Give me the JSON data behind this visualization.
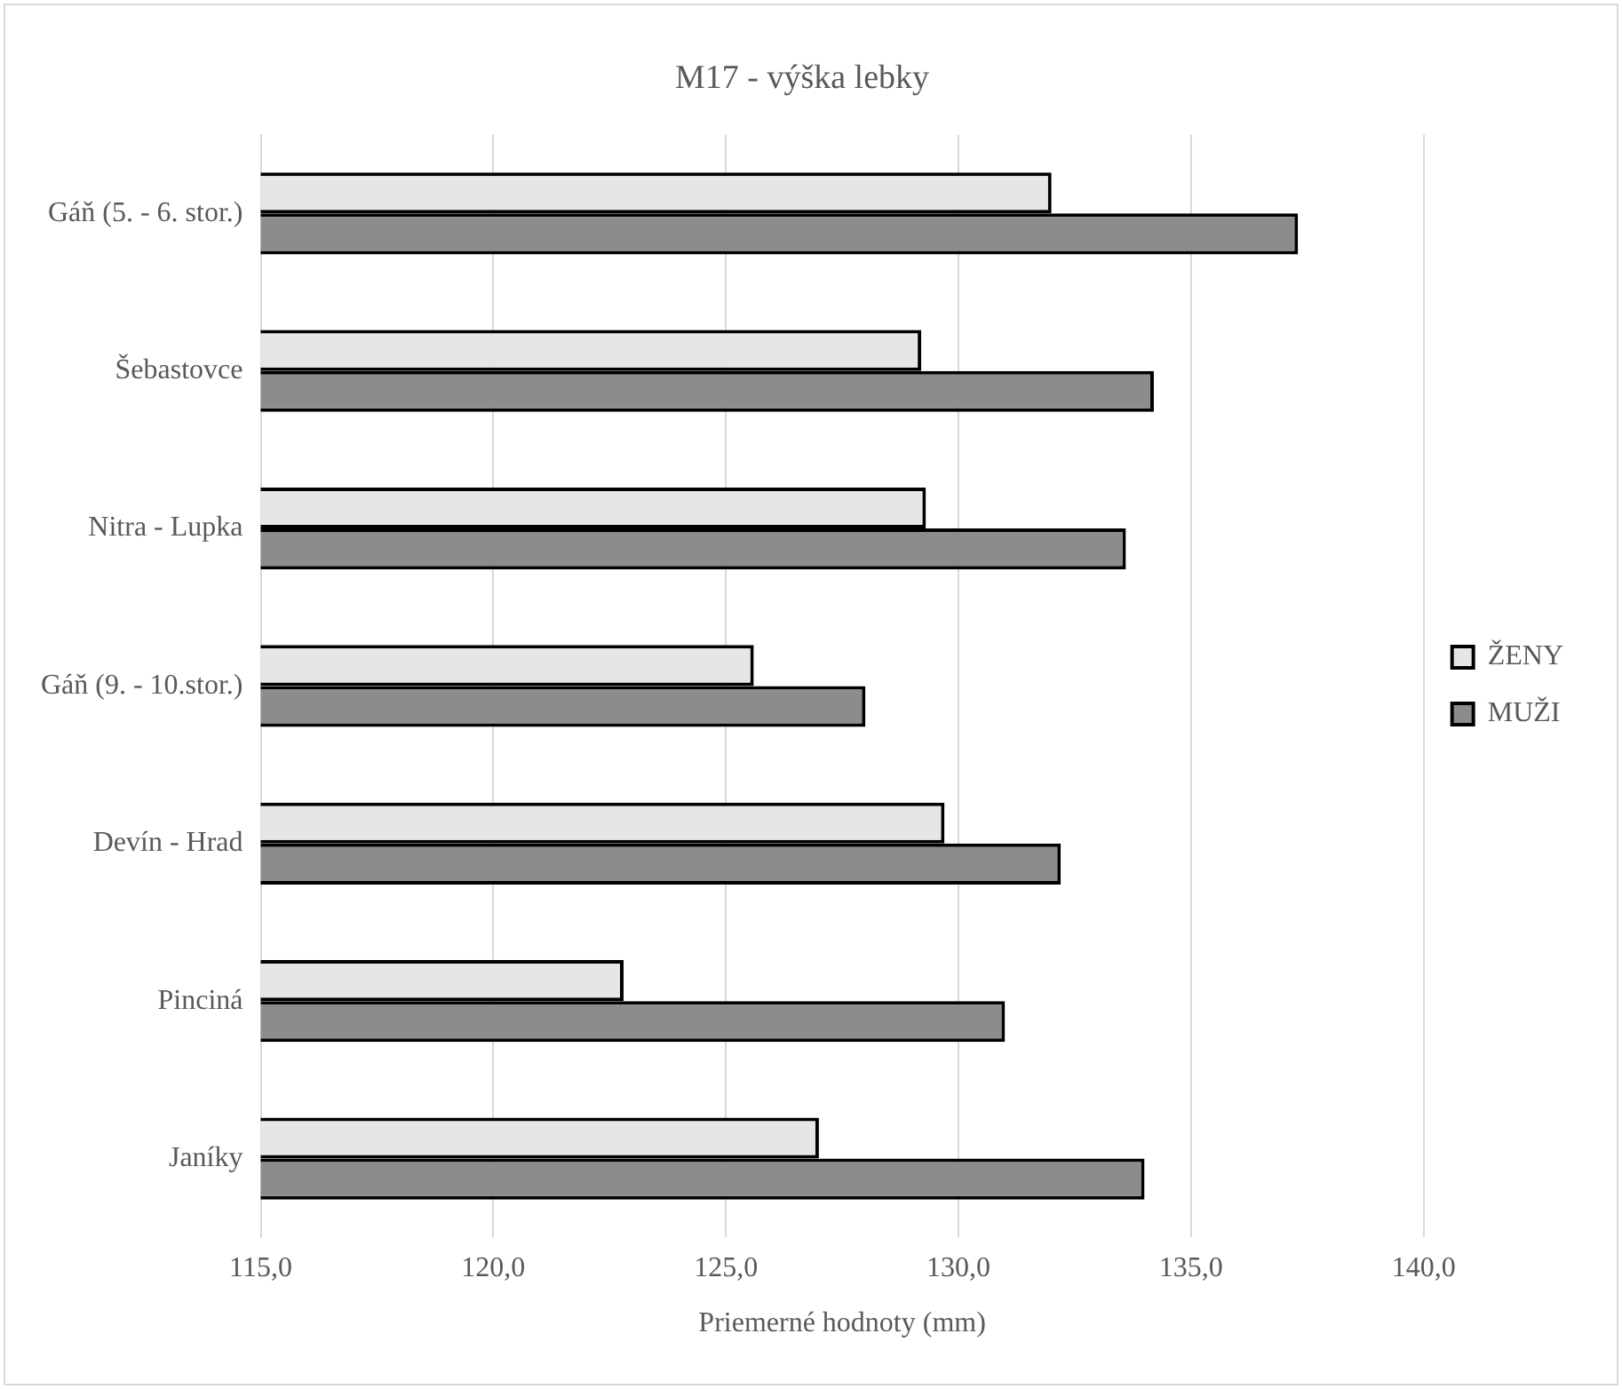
{
  "chart_data": {
    "type": "bar",
    "orientation": "horizontal",
    "title": "M17 - výška lebky",
    "xlabel": "Priemerné hodnoty (mm)",
    "categories": [
      "Gáň (5. - 6. stor.)",
      "Šebastovce",
      "Nitra - Lupka",
      "Gáň (9. - 10.stor.)",
      "Devín - Hrad",
      "Pinciná",
      "Janíky"
    ],
    "series": [
      {
        "name": "ŽENY",
        "color": "#e6e6e6",
        "values": [
          132.0,
          129.2,
          129.3,
          125.6,
          129.7,
          122.8,
          127.0
        ]
      },
      {
        "name": "MUŽI",
        "color": "#8c8c8c",
        "values": [
          137.3,
          134.2,
          133.6,
          128.0,
          132.2,
          131.0,
          134.0
        ]
      }
    ],
    "xlim": [
      115,
      140
    ],
    "xticks": [
      {
        "value": 115,
        "label": "115,0"
      },
      {
        "value": 120,
        "label": "120,0"
      },
      {
        "value": 125,
        "label": "125,0"
      },
      {
        "value": 130,
        "label": "130,0"
      },
      {
        "value": 135,
        "label": "135,0"
      },
      {
        "value": 140,
        "label": "140,0"
      }
    ],
    "grid": "x",
    "legend": "right"
  }
}
